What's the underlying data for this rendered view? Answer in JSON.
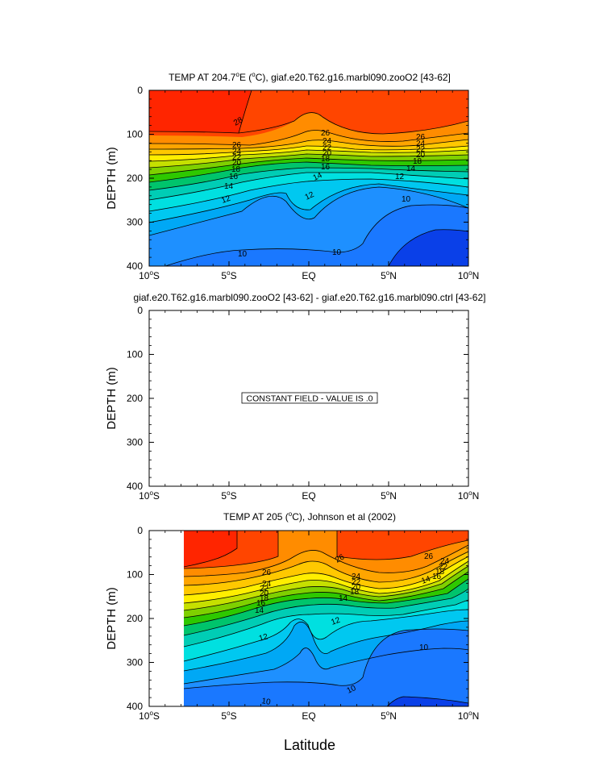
{
  "xlabel": "Latitude",
  "chart_data": [
    {
      "type": "heatmap",
      "id": "panel1",
      "title_html": "TEMP AT 204.7°E (°C), giaf.e20.T62.g16.marbl090.zooO2 [43-62]",
      "title": "TEMP AT 204.7°E (°C), giaf.e20.T62.g16.marbl090.zooO2 [43-62]",
      "ylabel": "DEPTH (m)",
      "xlim": [
        -10,
        10
      ],
      "ylim": [
        400,
        0
      ],
      "x_ticks": [
        "10°S",
        "5°S",
        "EQ",
        "5°N",
        "10°N"
      ],
      "y_ticks": [
        "0",
        "100",
        "200",
        "300",
        "400"
      ],
      "contour_labels": [
        "28",
        "26",
        "24",
        "22",
        "20",
        "18",
        "16",
        "14",
        "12",
        "10"
      ],
      "layers": [
        {
          "temp": 27,
          "color": "#ff4500",
          "x": [
            -10,
            10
          ],
          "y": [
            0,
            400
          ]
        },
        {
          "temp": 28,
          "color": "#ff2500",
          "x": [
            -10,
            -3.5
          ],
          "y": [
            0,
            92
          ]
        }
      ]
    },
    {
      "type": "heatmap",
      "id": "panel2",
      "title": "giaf.e20.T62.g16.marbl090.zooO2 [43-62] - giaf.e20.T62.g16.marbl090.ctrl [43-62]",
      "ylabel": "DEPTH (m)",
      "xlim": [
        -10,
        10
      ],
      "ylim": [
        400,
        0
      ],
      "x_ticks": [
        "10°S",
        "5°S",
        "EQ",
        "5°N",
        "10°N"
      ],
      "y_ticks": [
        "0",
        "100",
        "200",
        "300",
        "400"
      ],
      "annotation": "CONSTANT FIELD - VALUE IS .0"
    },
    {
      "type": "heatmap",
      "id": "panel3",
      "title": "TEMP AT 205 (°C), Johnson et al (2002)",
      "ylabel": "DEPTH (m)",
      "xlim": [
        -10,
        10
      ],
      "ylim": [
        400,
        0
      ],
      "data_xlim": [
        -7.8,
        10
      ],
      "x_ticks": [
        "10°S",
        "5°S",
        "EQ",
        "5°N",
        "10°N"
      ],
      "y_ticks": [
        "0",
        "100",
        "200",
        "300",
        "400"
      ],
      "contour_labels": [
        "26",
        "24",
        "22",
        "20",
        "18",
        "16",
        "14",
        "12",
        "10"
      ]
    }
  ]
}
